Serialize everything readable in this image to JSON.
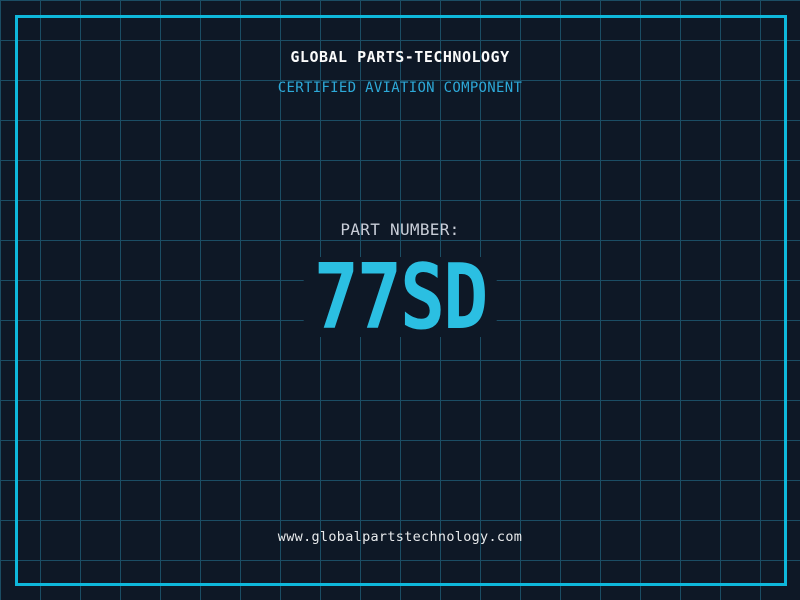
{
  "display": {
    "title": "GLOBAL PARTS-TECHNOLOGY",
    "subtitle": "CERTIFIED AVIATION COMPONENT",
    "part_label": "PART NUMBER:",
    "part_number": "77SD",
    "website": "www.globalpartstechnology.com"
  },
  "colors": {
    "background": "#0e1826",
    "grid_line": "#1b4d64",
    "frame": "#0eb7db",
    "title": "#fafafa",
    "subtitle": "#2da9d8",
    "part_label": "#c9ced8",
    "part_number": "#2bbfe2",
    "website": "#e8eaec"
  }
}
